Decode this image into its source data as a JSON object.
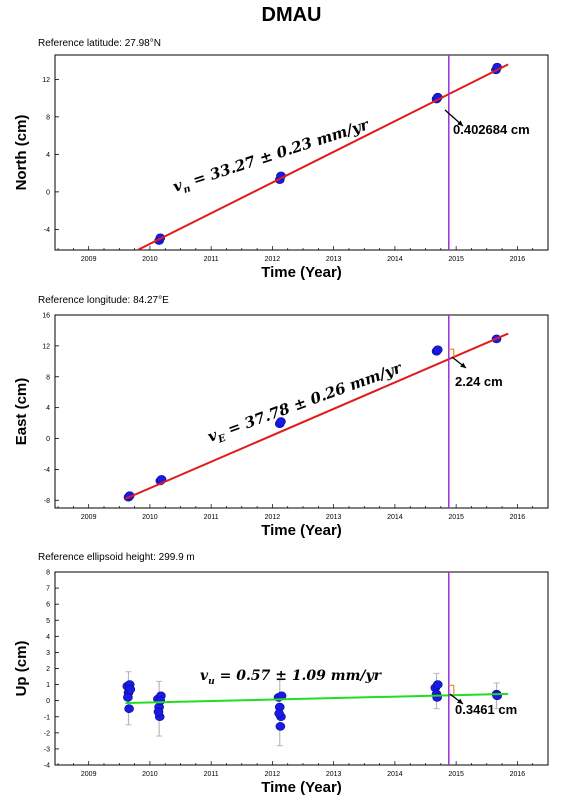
{
  "title": "DMAU",
  "chart_data": [
    {
      "type": "scatter",
      "reference": "Reference latitude: 27.98°N",
      "xlabel": "Time (Year)",
      "ylabel": "North (cm)",
      "xlim": [
        2008.45,
        2016.5
      ],
      "ylim": [
        -6.2,
        14.6
      ],
      "xticks": [
        2009,
        2010,
        2011,
        2012,
        2013,
        2014,
        2015,
        2016
      ],
      "yticks": [
        -4,
        0,
        4,
        8,
        12
      ],
      "points": [
        [
          2010.15,
          -5.2
        ],
        [
          2010.17,
          -4.9
        ],
        [
          2012.12,
          1.3
        ],
        [
          2012.14,
          1.7
        ],
        [
          2014.68,
          9.9
        ],
        [
          2014.7,
          10.1
        ],
        [
          2015.65,
          13.0
        ],
        [
          2015.67,
          13.3
        ]
      ],
      "errors": [],
      "trend": {
        "x": [
          2009.8,
          2015.85
        ],
        "y": [
          -6.2,
          13.6
        ],
        "color": "#e01b1b"
      },
      "event_x": 2014.88,
      "rate_label": {
        "var": "v",
        "sub": "n",
        "text": "= 33.27 ± 0.23 mm/yr"
      },
      "offset_label": "0.402684 cm",
      "offset_marker": false
    },
    {
      "type": "scatter",
      "reference": "Reference longitude: 84.27°E",
      "xlabel": "Time (Year)",
      "ylabel": "East (cm)",
      "xlim": [
        2008.45,
        2016.5
      ],
      "ylim": [
        -9.0,
        16.0
      ],
      "xticks": [
        2009,
        2010,
        2011,
        2012,
        2013,
        2014,
        2015,
        2016
      ],
      "yticks": [
        -8,
        -4,
        0,
        4,
        8,
        12,
        16
      ],
      "points": [
        [
          2009.65,
          -7.6
        ],
        [
          2009.67,
          -7.4
        ],
        [
          2010.17,
          -5.5
        ],
        [
          2010.19,
          -5.3
        ],
        [
          2012.12,
          1.9
        ],
        [
          2012.14,
          2.2
        ],
        [
          2014.68,
          11.3
        ],
        [
          2014.7,
          11.5
        ],
        [
          2015.66,
          12.9
        ]
      ],
      "errors": [],
      "trend": {
        "x": [
          2009.6,
          2015.85
        ],
        "y": [
          -7.8,
          13.6
        ],
        "color": "#e01b1b"
      },
      "event_x": 2014.88,
      "rate_label": {
        "var": "v",
        "sub": "E",
        "text": "= 37.78 ± 0.26 mm/yr"
      },
      "offset_label": "2.24 cm",
      "offset_marker": true
    },
    {
      "type": "scatter",
      "reference": "Reference ellipsoid height: 299.9 m",
      "xlabel": "Time (Year)",
      "ylabel": "Up (cm)",
      "xlim": [
        2008.45,
        2016.5
      ],
      "ylim": [
        -4,
        8
      ],
      "xticks": [
        2009,
        2010,
        2011,
        2012,
        2013,
        2014,
        2015,
        2016
      ],
      "yticks": [
        -4,
        -3,
        -2,
        -1,
        0,
        1,
        2,
        3,
        4,
        5,
        6,
        7,
        8
      ],
      "points": [
        [
          2009.63,
          0.9
        ],
        [
          2009.65,
          0.5
        ],
        [
          2009.67,
          1.0
        ],
        [
          2009.64,
          0.2
        ],
        [
          2009.66,
          -0.5
        ],
        [
          2009.68,
          0.7
        ],
        [
          2010.13,
          0.1
        ],
        [
          2010.15,
          -0.4
        ],
        [
          2010.16,
          -1.0
        ],
        [
          2010.18,
          0.3
        ],
        [
          2010.14,
          -0.7
        ],
        [
          2010.17,
          0.0
        ],
        [
          2012.1,
          0.2
        ],
        [
          2012.12,
          -0.4
        ],
        [
          2012.14,
          -1.0
        ],
        [
          2012.13,
          -1.6
        ],
        [
          2012.15,
          0.3
        ],
        [
          2012.11,
          -0.8
        ],
        [
          2014.66,
          0.8
        ],
        [
          2014.68,
          0.4
        ],
        [
          2014.7,
          1.0
        ],
        [
          2014.69,
          0.2
        ],
        [
          2015.66,
          0.4
        ],
        [
          2015.67,
          0.3
        ]
      ],
      "errors": [
        [
          2009.65,
          -1.5,
          1.8
        ],
        [
          2010.15,
          -2.2,
          1.2
        ],
        [
          2012.12,
          -2.8,
          1.3
        ],
        [
          2014.68,
          -0.5,
          1.7
        ],
        [
          2015.66,
          -0.5,
          1.1
        ]
      ],
      "trend": {
        "x": [
          2009.6,
          2015.85
        ],
        "y": [
          -0.15,
          0.42
        ],
        "color": "#22dd22"
      },
      "event_x": 2014.88,
      "rate_label": {
        "var": "v",
        "sub": "u",
        "text": "= 0.57 ± 1.09 mm/yr"
      },
      "offset_label": "0.3461 cm",
      "offset_marker": true
    }
  ]
}
